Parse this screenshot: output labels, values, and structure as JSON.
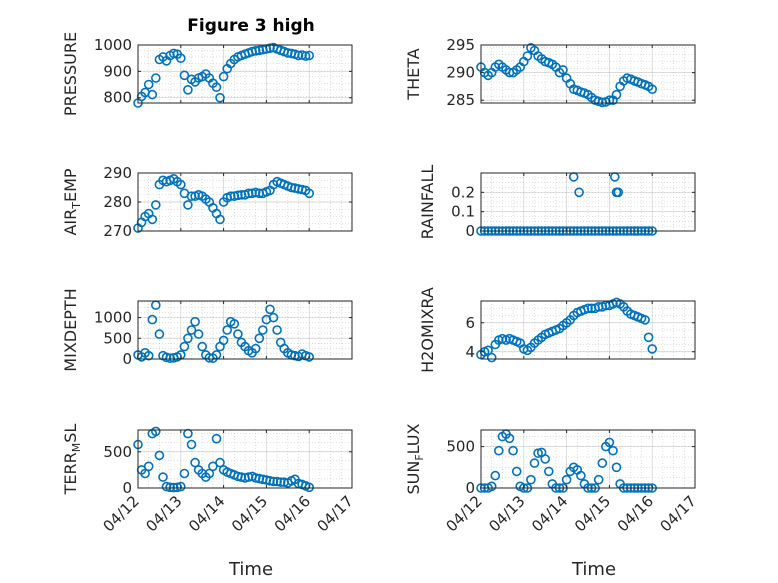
{
  "figure_title": "Figure 3 high",
  "colors": {
    "marker": "#0072BD",
    "axis": "#262626",
    "grid": "#b0b0b0",
    "background": "#ffffff"
  },
  "chart_data": [
    {
      "type": "scatter",
      "ylabel": "PRESSURE",
      "title": "Figure 3 high",
      "ylim": [
        780,
        1000
      ],
      "yticks": [
        800,
        900,
        1000
      ],
      "grid": true,
      "x": [
        "04/12 00:00",
        "04/12 02:00",
        "04/12 04:00",
        "04/12 06:00",
        "04/12 08:00",
        "04/12 10:00",
        "04/12 12:00",
        "04/12 14:00",
        "04/12 16:00",
        "04/12 18:00",
        "04/12 20:00",
        "04/12 22:00",
        "04/13 00:00",
        "04/13 02:00",
        "04/13 04:00",
        "04/13 06:00",
        "04/13 08:00",
        "04/13 10:00",
        "04/13 12:00",
        "04/13 14:00",
        "04/13 16:00",
        "04/13 18:00",
        "04/13 20:00",
        "04/13 22:00",
        "04/14 00:00",
        "04/14 02:00",
        "04/14 04:00",
        "04/14 06:00",
        "04/14 08:00",
        "04/14 10:00",
        "04/14 12:00",
        "04/14 14:00",
        "04/14 16:00",
        "04/14 18:00",
        "04/14 20:00",
        "04/14 22:00",
        "04/15 00:00",
        "04/15 02:00",
        "04/15 04:00",
        "04/15 06:00",
        "04/15 08:00",
        "04/15 10:00",
        "04/15 12:00",
        "04/15 14:00",
        "04/15 16:00",
        "04/15 18:00",
        "04/15 20:00",
        "04/15 22:00",
        "04/16 00:00"
      ],
      "y": [
        780,
        805,
        820,
        850,
        812,
        875,
        945,
        955,
        940,
        960,
        968,
        965,
        950,
        885,
        830,
        870,
        860,
        875,
        880,
        890,
        875,
        855,
        840,
        800,
        880,
        910,
        930,
        945,
        955,
        960,
        965,
        970,
        975,
        978,
        980,
        982,
        985,
        988,
        990,
        985,
        980,
        975,
        970,
        968,
        965,
        960,
        962,
        958,
        960
      ]
    },
    {
      "type": "scatter",
      "ylabel": "THETA",
      "ylim": [
        284.5,
        295
      ],
      "yticks": [
        285,
        290,
        295
      ],
      "grid": true,
      "x": [
        "04/12 00:00",
        "04/12 02:00",
        "04/12 04:00",
        "04/12 06:00",
        "04/12 08:00",
        "04/12 10:00",
        "04/12 12:00",
        "04/12 14:00",
        "04/12 16:00",
        "04/12 18:00",
        "04/12 20:00",
        "04/12 22:00",
        "04/13 00:00",
        "04/13 02:00",
        "04/13 04:00",
        "04/13 06:00",
        "04/13 08:00",
        "04/13 10:00",
        "04/13 12:00",
        "04/13 14:00",
        "04/13 16:00",
        "04/13 18:00",
        "04/13 20:00",
        "04/13 22:00",
        "04/14 00:00",
        "04/14 02:00",
        "04/14 04:00",
        "04/14 06:00",
        "04/14 08:00",
        "04/14 10:00",
        "04/14 12:00",
        "04/14 14:00",
        "04/14 16:00",
        "04/14 18:00",
        "04/14 20:00",
        "04/14 22:00",
        "04/15 00:00",
        "04/15 02:00",
        "04/15 04:00",
        "04/15 06:00",
        "04/15 08:00",
        "04/15 10:00",
        "04/15 12:00",
        "04/15 14:00",
        "04/15 16:00",
        "04/15 18:00",
        "04/15 20:00",
        "04/15 22:00",
        "04/16 00:00"
      ],
      "y": [
        291,
        290,
        289.5,
        290,
        291,
        291.5,
        291,
        290.5,
        290,
        290,
        290.5,
        291,
        292,
        293,
        294.5,
        294,
        293,
        292.5,
        292,
        291.8,
        291.5,
        291,
        290,
        290.5,
        289,
        288,
        287,
        286.8,
        286.5,
        286.3,
        286,
        285.5,
        285,
        284.8,
        284.6,
        284.7,
        285,
        285,
        286,
        287.5,
        288.5,
        289,
        288.8,
        288.5,
        288.3,
        288,
        287.8,
        287.5,
        287
      ]
    },
    {
      "type": "scatter",
      "ylabel": "AIR_TEMP",
      "ylim": [
        270,
        290
      ],
      "yticks": [
        270,
        280,
        290
      ],
      "grid": true,
      "x": [
        "04/12 00:00",
        "04/12 02:00",
        "04/12 04:00",
        "04/12 06:00",
        "04/12 08:00",
        "04/12 10:00",
        "04/12 12:00",
        "04/12 14:00",
        "04/12 16:00",
        "04/12 18:00",
        "04/12 20:00",
        "04/12 22:00",
        "04/13 00:00",
        "04/13 02:00",
        "04/13 04:00",
        "04/13 06:00",
        "04/13 08:00",
        "04/13 10:00",
        "04/13 12:00",
        "04/13 14:00",
        "04/13 16:00",
        "04/13 18:00",
        "04/13 20:00",
        "04/13 22:00",
        "04/14 00:00",
        "04/14 02:00",
        "04/14 04:00",
        "04/14 06:00",
        "04/14 08:00",
        "04/14 10:00",
        "04/14 12:00",
        "04/14 14:00",
        "04/14 16:00",
        "04/14 18:00",
        "04/14 20:00",
        "04/14 22:00",
        "04/15 00:00",
        "04/15 02:00",
        "04/15 04:00",
        "04/15 06:00",
        "04/15 08:00",
        "04/15 10:00",
        "04/15 12:00",
        "04/15 14:00",
        "04/15 16:00",
        "04/15 18:00",
        "04/15 20:00",
        "04/15 22:00",
        "04/16 00:00"
      ],
      "y": [
        271,
        273,
        275,
        276,
        274,
        279,
        286,
        287.5,
        287,
        287.5,
        288,
        287,
        286,
        283,
        279,
        282,
        282,
        282.5,
        282,
        281,
        280,
        278,
        276,
        274,
        280,
        281.5,
        282,
        282,
        282.3,
        282.5,
        282.5,
        283,
        283,
        283.3,
        283,
        283,
        283.5,
        284,
        286,
        287,
        286.5,
        286,
        285.5,
        285,
        284.8,
        284.5,
        284.3,
        284,
        283
      ]
    },
    {
      "type": "scatter",
      "ylabel": "RAINFALL",
      "ylim": [
        0,
        0.3
      ],
      "yticks": [
        0,
        0.1,
        0.2
      ],
      "grid": true,
      "x": [
        "04/12 00:00",
        "04/12 02:00",
        "04/12 04:00",
        "04/12 06:00",
        "04/12 08:00",
        "04/12 10:00",
        "04/12 12:00",
        "04/12 14:00",
        "04/12 16:00",
        "04/12 18:00",
        "04/12 20:00",
        "04/12 22:00",
        "04/13 00:00",
        "04/13 02:00",
        "04/13 04:00",
        "04/13 06:00",
        "04/13 08:00",
        "04/13 10:00",
        "04/13 12:00",
        "04/13 14:00",
        "04/13 16:00",
        "04/13 18:00",
        "04/13 20:00",
        "04/13 22:00",
        "04/14 00:00",
        "04/14 02:00",
        "04/14 04:00",
        "04/14 06:00",
        "04/14 08:00",
        "04/14 10:00",
        "04/14 12:00",
        "04/14 14:00",
        "04/14 16:00",
        "04/14 18:00",
        "04/14 20:00",
        "04/14 22:00",
        "04/15 00:00",
        "04/15 02:00",
        "04/15 04:00",
        "04/15 06:00",
        "04/15 08:00",
        "04/15 10:00",
        "04/15 12:00",
        "04/15 14:00",
        "04/15 16:00",
        "04/15 18:00",
        "04/15 20:00",
        "04/15 22:00",
        "04/16 00:00",
        "04/14 04:00",
        "04/14 07:00",
        "04/15 03:00",
        "04/15 04:00",
        "04/15 05:00"
      ],
      "y": [
        0,
        0,
        0,
        0,
        0,
        0,
        0,
        0,
        0,
        0,
        0,
        0,
        0,
        0,
        0,
        0,
        0,
        0,
        0,
        0,
        0,
        0,
        0,
        0,
        0,
        0,
        0,
        0,
        0,
        0,
        0,
        0,
        0,
        0,
        0,
        0,
        0,
        0,
        0,
        0,
        0,
        0,
        0,
        0,
        0,
        0,
        0,
        0,
        0,
        0.28,
        0.2,
        0.28,
        0.2,
        0.2
      ]
    },
    {
      "type": "scatter",
      "ylabel": "MIXDEPTH",
      "ylim": [
        0,
        1400
      ],
      "yticks": [
        0,
        500,
        1000
      ],
      "grid": true,
      "x": [
        "04/12 00:00",
        "04/12 02:00",
        "04/12 04:00",
        "04/12 06:00",
        "04/12 08:00",
        "04/12 10:00",
        "04/12 12:00",
        "04/12 14:00",
        "04/12 16:00",
        "04/12 18:00",
        "04/12 20:00",
        "04/12 22:00",
        "04/13 00:00",
        "04/13 02:00",
        "04/13 04:00",
        "04/13 06:00",
        "04/13 08:00",
        "04/13 10:00",
        "04/13 12:00",
        "04/13 14:00",
        "04/13 16:00",
        "04/13 18:00",
        "04/13 20:00",
        "04/13 22:00",
        "04/14 00:00",
        "04/14 02:00",
        "04/14 04:00",
        "04/14 06:00",
        "04/14 08:00",
        "04/14 10:00",
        "04/14 12:00",
        "04/14 14:00",
        "04/14 16:00",
        "04/14 18:00",
        "04/14 20:00",
        "04/14 22:00",
        "04/15 00:00",
        "04/15 02:00",
        "04/15 04:00",
        "04/15 06:00",
        "04/15 08:00",
        "04/15 10:00",
        "04/15 12:00",
        "04/15 14:00",
        "04/15 16:00",
        "04/15 18:00",
        "04/15 20:00",
        "04/15 22:00",
        "04/16 00:00"
      ],
      "y": [
        100,
        50,
        150,
        80,
        950,
        1300,
        600,
        80,
        40,
        20,
        30,
        50,
        100,
        300,
        500,
        700,
        900,
        600,
        300,
        100,
        30,
        20,
        100,
        300,
        450,
        700,
        900,
        850,
        600,
        400,
        300,
        200,
        150,
        250,
        500,
        700,
        950,
        1200,
        1000,
        700,
        400,
        250,
        150,
        100,
        80,
        60,
        120,
        80,
        50
      ]
    },
    {
      "type": "scatter",
      "ylabel": "H2OMIXRA",
      "ylim": [
        3.5,
        7.5
      ],
      "yticks": [
        4,
        6
      ],
      "grid": true,
      "x": [
        "04/12 00:00",
        "04/12 02:00",
        "04/12 04:00",
        "04/12 06:00",
        "04/12 08:00",
        "04/12 10:00",
        "04/12 12:00",
        "04/12 14:00",
        "04/12 16:00",
        "04/12 18:00",
        "04/12 20:00",
        "04/12 22:00",
        "04/13 00:00",
        "04/13 02:00",
        "04/13 04:00",
        "04/13 06:00",
        "04/13 08:00",
        "04/13 10:00",
        "04/13 12:00",
        "04/13 14:00",
        "04/13 16:00",
        "04/13 18:00",
        "04/13 20:00",
        "04/13 22:00",
        "04/14 00:00",
        "04/14 02:00",
        "04/14 04:00",
        "04/14 06:00",
        "04/14 08:00",
        "04/14 10:00",
        "04/14 12:00",
        "04/14 14:00",
        "04/14 16:00",
        "04/14 18:00",
        "04/14 20:00",
        "04/14 22:00",
        "04/15 00:00",
        "04/15 02:00",
        "04/15 04:00",
        "04/15 06:00",
        "04/15 08:00",
        "04/15 10:00",
        "04/15 12:00",
        "04/15 14:00",
        "04/15 16:00",
        "04/15 18:00",
        "04/15 20:00",
        "04/15 22:00",
        "04/16 00:00"
      ],
      "y": [
        3.8,
        4.0,
        4.1,
        3.6,
        4.5,
        4.8,
        4.9,
        4.8,
        4.9,
        4.8,
        4.7,
        4.6,
        4.2,
        4.1,
        4.3,
        4.6,
        4.8,
        5.0,
        5.2,
        5.3,
        5.4,
        5.5,
        5.6,
        5.8,
        6.0,
        6.2,
        6.5,
        6.7,
        6.8,
        6.9,
        7.0,
        7.0,
        7.0,
        7.1,
        7.1,
        7.2,
        7.2,
        7.3,
        7.4,
        7.3,
        7.1,
        6.8,
        6.6,
        6.5,
        6.4,
        6.3,
        6.2,
        5.0,
        4.2
      ]
    },
    {
      "type": "scatter",
      "ylabel": "TERR_MSL",
      "ylim": [
        0,
        800
      ],
      "yticks": [
        0,
        500
      ],
      "grid": true,
      "x": [
        "04/12 00:00",
        "04/12 02:00",
        "04/12 04:00",
        "04/12 06:00",
        "04/12 08:00",
        "04/12 10:00",
        "04/12 12:00",
        "04/12 14:00",
        "04/12 16:00",
        "04/12 18:00",
        "04/12 20:00",
        "04/12 22:00",
        "04/13 00:00",
        "04/13 02:00",
        "04/13 04:00",
        "04/13 06:00",
        "04/13 08:00",
        "04/13 10:00",
        "04/13 12:00",
        "04/13 14:00",
        "04/13 16:00",
        "04/13 18:00",
        "04/13 20:00",
        "04/13 22:00",
        "04/14 00:00",
        "04/14 02:00",
        "04/14 04:00",
        "04/14 06:00",
        "04/14 08:00",
        "04/14 10:00",
        "04/14 12:00",
        "04/14 14:00",
        "04/14 16:00",
        "04/14 18:00",
        "04/14 20:00",
        "04/14 22:00",
        "04/15 00:00",
        "04/15 02:00",
        "04/15 04:00",
        "04/15 06:00",
        "04/15 08:00",
        "04/15 10:00",
        "04/15 12:00",
        "04/15 14:00",
        "04/15 16:00",
        "04/15 18:00",
        "04/15 20:00",
        "04/15 22:00",
        "04/16 00:00"
      ],
      "y": [
        600,
        250,
        200,
        300,
        750,
        780,
        450,
        150,
        20,
        10,
        5,
        10,
        20,
        200,
        750,
        600,
        350,
        250,
        200,
        150,
        200,
        300,
        680,
        350,
        250,
        220,
        200,
        180,
        160,
        150,
        140,
        150,
        160,
        140,
        130,
        120,
        110,
        100,
        90,
        90,
        80,
        80,
        70,
        100,
        120,
        60,
        50,
        30,
        10
      ]
    },
    {
      "type": "scatter",
      "ylabel": "SUN_FLUX",
      "ylim": [
        0,
        700
      ],
      "yticks": [
        0,
        500
      ],
      "grid": true,
      "x": [
        "04/12 00:00",
        "04/12 02:00",
        "04/12 04:00",
        "04/12 06:00",
        "04/12 08:00",
        "04/12 10:00",
        "04/12 12:00",
        "04/12 14:00",
        "04/12 16:00",
        "04/12 18:00",
        "04/12 20:00",
        "04/12 22:00",
        "04/13 00:00",
        "04/13 02:00",
        "04/13 04:00",
        "04/13 06:00",
        "04/13 08:00",
        "04/13 10:00",
        "04/13 12:00",
        "04/13 14:00",
        "04/13 16:00",
        "04/13 18:00",
        "04/13 20:00",
        "04/13 22:00",
        "04/14 00:00",
        "04/14 02:00",
        "04/14 04:00",
        "04/14 06:00",
        "04/14 08:00",
        "04/14 10:00",
        "04/14 12:00",
        "04/14 14:00",
        "04/14 16:00",
        "04/14 18:00",
        "04/14 20:00",
        "04/14 22:00",
        "04/15 00:00",
        "04/15 02:00",
        "04/15 04:00",
        "04/15 06:00",
        "04/15 08:00",
        "04/15 10:00",
        "04/15 12:00",
        "04/15 14:00",
        "04/15 16:00",
        "04/15 18:00",
        "04/15 20:00",
        "04/15 22:00",
        "04/16 00:00"
      ],
      "y": [
        0,
        0,
        0,
        20,
        150,
        450,
        620,
        650,
        600,
        450,
        200,
        20,
        0,
        0,
        100,
        300,
        420,
        430,
        350,
        200,
        50,
        0,
        0,
        0,
        100,
        200,
        250,
        220,
        150,
        50,
        0,
        0,
        0,
        100,
        300,
        500,
        550,
        450,
        250,
        50,
        0,
        0,
        0,
        0,
        0,
        0,
        0,
        0,
        0
      ]
    }
  ],
  "x_axis": {
    "ticks": [
      "04/12",
      "04/13",
      "04/14",
      "04/15",
      "04/16",
      "04/17"
    ],
    "label": "Time",
    "range": [
      "04/12 00:00",
      "04/17 00:00"
    ]
  }
}
